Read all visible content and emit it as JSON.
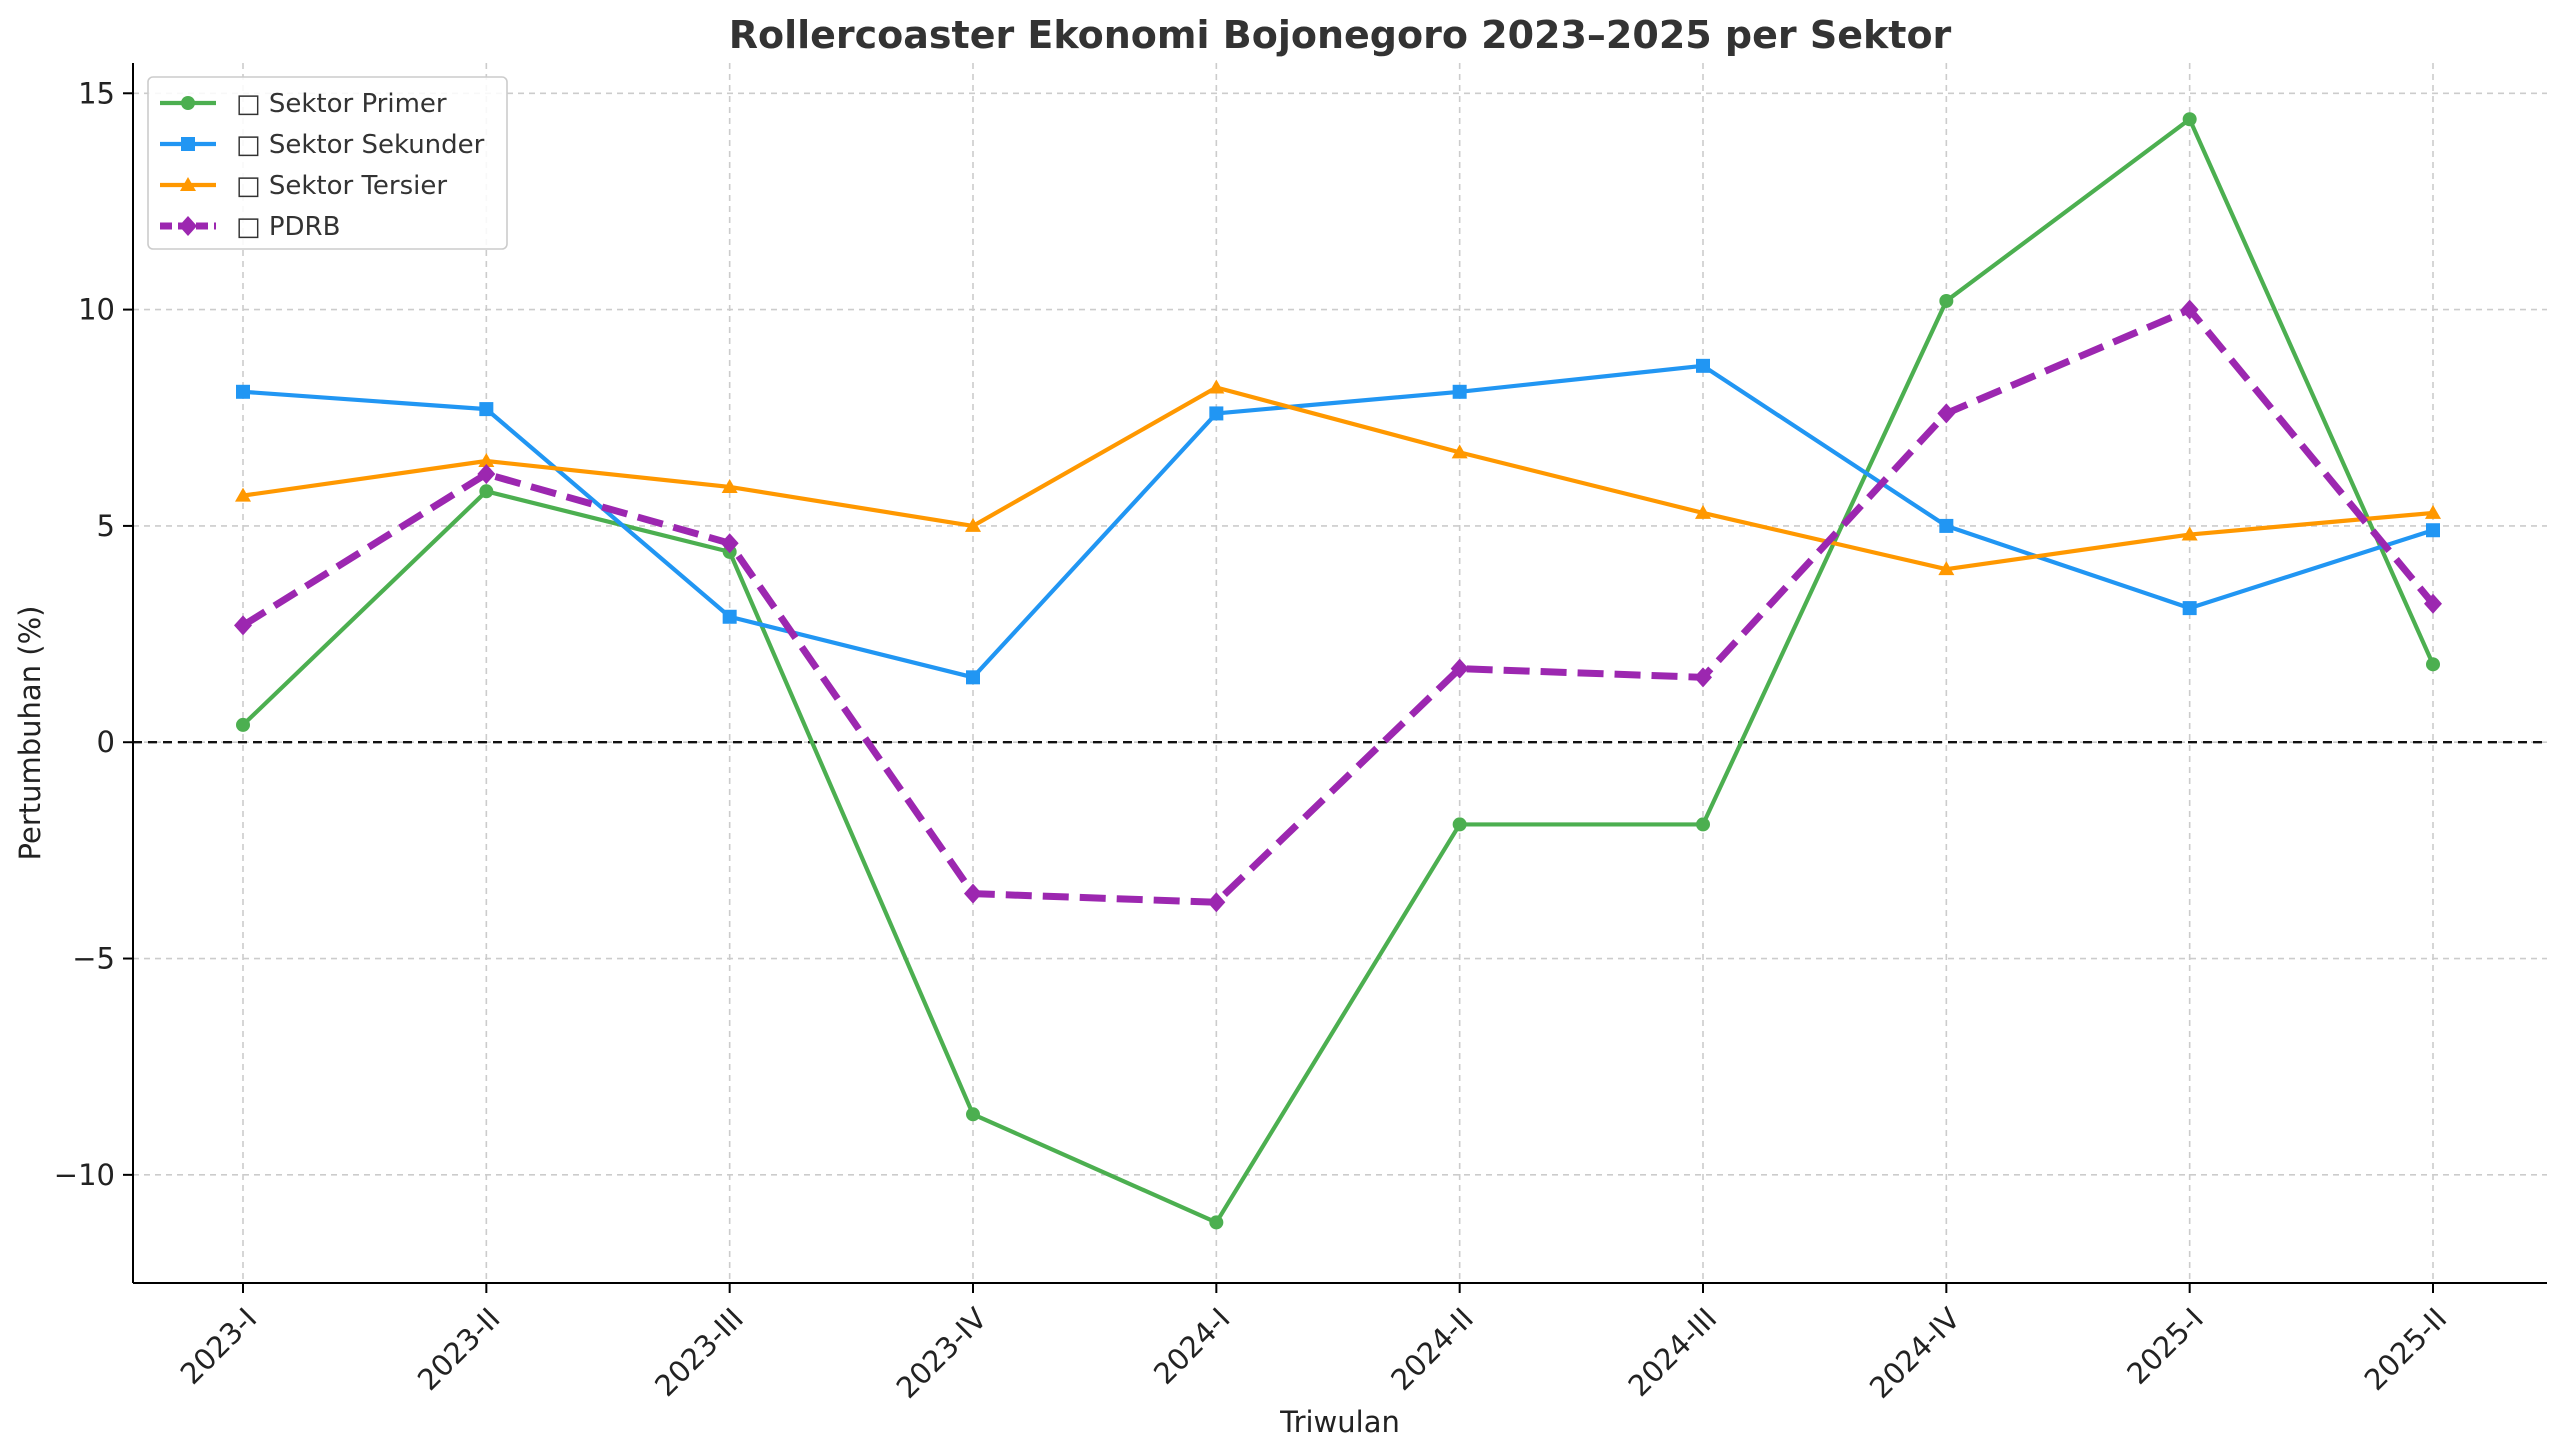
{
  "chart_data": {
    "type": "line",
    "title": "Rollercoaster Ekonomi Bojonegoro 2023–2025 per Sektor",
    "xlabel": "Triwulan",
    "ylabel": "Pertumbuhan (%)",
    "categories": [
      "2023-I",
      "2023-II",
      "2023-III",
      "2023-IV",
      "2024-I",
      "2024-II",
      "2024-III",
      "2024-IV",
      "2025-I",
      "2025-II"
    ],
    "ylim": [
      -12.5,
      15.7
    ],
    "yticks": [
      15,
      10,
      5,
      0,
      -5,
      -10
    ],
    "ytick_labels": [
      "15",
      "10",
      "5",
      "0",
      "−5",
      "−10"
    ],
    "grid": true,
    "reference_line": 0,
    "legend_position": "top-left",
    "series": [
      {
        "name": "Sektor Primer",
        "legend_glyph": "□",
        "color": "#4caf50",
        "marker": "circle",
        "dashed": false,
        "values": [
          0.4,
          5.8,
          4.4,
          -8.6,
          -11.1,
          -1.9,
          -1.9,
          10.2,
          14.4,
          1.8
        ]
      },
      {
        "name": "Sektor Sekunder",
        "legend_glyph": "□",
        "color": "#2196f3",
        "marker": "square",
        "dashed": false,
        "values": [
          8.1,
          7.7,
          2.9,
          1.5,
          7.6,
          8.1,
          8.7,
          5.0,
          3.1,
          4.9
        ]
      },
      {
        "name": "Sektor Tersier",
        "legend_glyph": "□",
        "color": "#ff9800",
        "marker": "triangle",
        "dashed": false,
        "values": [
          5.7,
          6.5,
          5.9,
          5.0,
          8.2,
          6.7,
          5.3,
          4.0,
          4.8,
          5.3
        ]
      },
      {
        "name": "PDRB",
        "legend_glyph": "□",
        "color": "#9c27b0",
        "marker": "diamond",
        "dashed": true,
        "values": [
          2.7,
          6.2,
          4.6,
          -3.5,
          -3.7,
          1.7,
          1.5,
          7.6,
          10.0,
          3.2
        ]
      }
    ]
  }
}
